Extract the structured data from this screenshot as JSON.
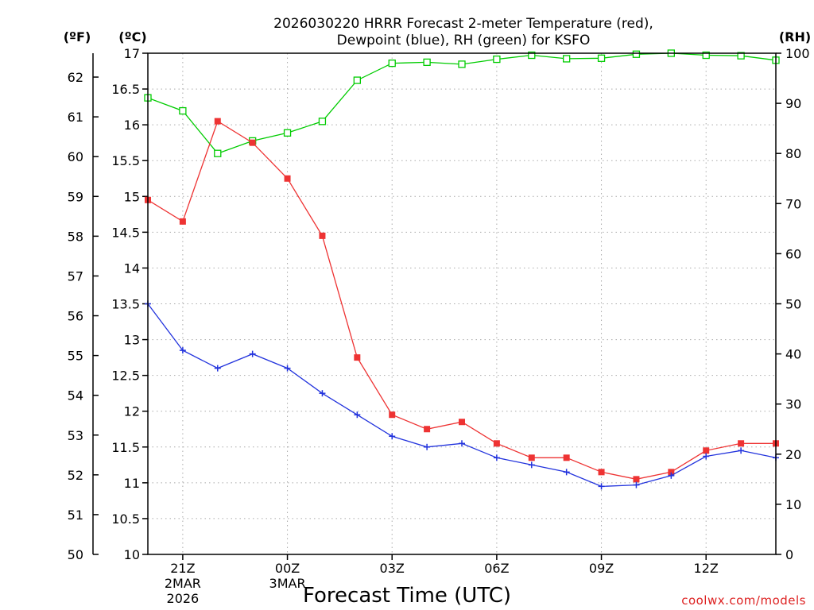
{
  "title_line1": "2026030220 HRRR Forecast 2-meter Temperature (red),",
  "title_line2": "Dewpoint (blue), RH (green) for KSFO",
  "credit": "coolwx.com/models",
  "colors": {
    "temperature": "#ee3333",
    "dewpoint": "#2233dd",
    "rh": "#00cc00",
    "grid": "#aaaaaa"
  },
  "chart_data": {
    "type": "line",
    "xlabel": "Forecast Time (UTC)",
    "x": [
      "20Z",
      "21Z",
      "22Z",
      "23Z",
      "00Z",
      "01Z",
      "02Z",
      "03Z",
      "04Z",
      "05Z",
      "06Z",
      "07Z",
      "08Z",
      "09Z",
      "10Z",
      "11Z",
      "12Z",
      "13Z",
      "14Z"
    ],
    "x_tick_labels": [
      {
        "index": 1,
        "lines": [
          "21Z",
          "2MAR",
          "2026"
        ]
      },
      {
        "index": 4,
        "lines": [
          "00Z",
          "3MAR"
        ]
      },
      {
        "index": 7,
        "lines": [
          "03Z"
        ]
      },
      {
        "index": 10,
        "lines": [
          "06Z"
        ]
      },
      {
        "index": 13,
        "lines": [
          "09Z"
        ]
      },
      {
        "index": 16,
        "lines": [
          "12Z"
        ]
      }
    ],
    "y_left_c": {
      "label": "(ºC)",
      "ylim": [
        10,
        17
      ],
      "ticks": [
        "10",
        "10.5",
        "11",
        "11.5",
        "12",
        "12.5",
        "13",
        "13.5",
        "14",
        "14.5",
        "15",
        "15.5",
        "16",
        "16.5",
        "17"
      ]
    },
    "y_left_f": {
      "label": "(ºF)",
      "ylim": [
        50,
        62.6
      ],
      "ticks": [
        "50",
        "51",
        "52",
        "53",
        "54",
        "55",
        "56",
        "57",
        "58",
        "59",
        "60",
        "61",
        "62"
      ]
    },
    "y_right_rh": {
      "label": "(RH)",
      "ylim": [
        0,
        100
      ],
      "ticks": [
        "0",
        "10",
        "20",
        "30",
        "40",
        "50",
        "60",
        "70",
        "80",
        "90",
        "100"
      ]
    },
    "grid": true,
    "series": [
      {
        "key": "temperature",
        "units": "C",
        "marker": "square-filled",
        "values": [
          14.95,
          14.65,
          16.05,
          15.75,
          15.25,
          14.45,
          12.75,
          11.95,
          11.75,
          11.85,
          11.55,
          11.35,
          11.35,
          11.15,
          11.05,
          11.15,
          11.45,
          11.55,
          11.55
        ]
      },
      {
        "key": "dewpoint",
        "units": "C",
        "marker": "plus",
        "values": [
          13.5,
          12.85,
          12.6,
          12.8,
          12.6,
          12.25,
          11.95,
          11.65,
          11.5,
          11.55,
          11.35,
          11.25,
          11.15,
          10.95,
          10.97,
          11.1,
          11.37,
          11.45,
          11.35
        ]
      },
      {
        "key": "rh",
        "units": "%",
        "marker": "square-open",
        "values": [
          91.1,
          88.5,
          80.0,
          82.5,
          84.1,
          86.4,
          94.6,
          98.0,
          98.2,
          97.8,
          98.8,
          99.6,
          98.9,
          99.0,
          99.8,
          100.0,
          99.6,
          99.5,
          98.6
        ]
      }
    ]
  }
}
